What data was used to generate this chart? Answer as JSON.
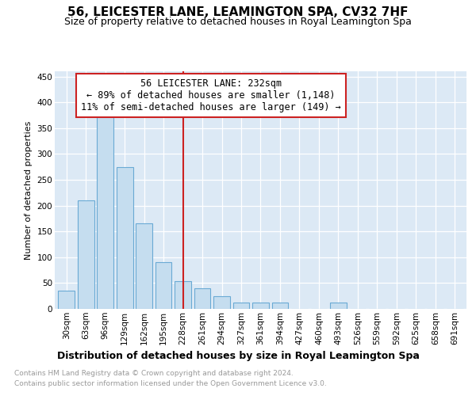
{
  "title": "56, LEICESTER LANE, LEAMINGTON SPA, CV32 7HF",
  "subtitle": "Size of property relative to detached houses in Royal Leamington Spa",
  "xlabel": "Distribution of detached houses by size in Royal Leamington Spa",
  "ylabel": "Number of detached properties",
  "footnote1": "Contains HM Land Registry data © Crown copyright and database right 2024.",
  "footnote2": "Contains public sector information licensed under the Open Government Licence v3.0.",
  "annotation_line1": "56 LEICESTER LANE: 232sqm",
  "annotation_line2": "← 89% of detached houses are smaller (1,148)",
  "annotation_line3": "11% of semi-detached houses are larger (149) →",
  "bar_color": "#c5ddef",
  "bar_edge_color": "#6aaad4",
  "highlight_line_color": "#cc2222",
  "annotation_box_edgecolor": "#cc2222",
  "plot_bg_color": "#dce9f5",
  "categories": [
    "30sqm",
    "63sqm",
    "96sqm",
    "129sqm",
    "162sqm",
    "195sqm",
    "228sqm",
    "261sqm",
    "294sqm",
    "327sqm",
    "361sqm",
    "394sqm",
    "427sqm",
    "460sqm",
    "493sqm",
    "526sqm",
    "559sqm",
    "592sqm",
    "625sqm",
    "658sqm",
    "691sqm"
  ],
  "values": [
    35,
    210,
    375,
    275,
    165,
    90,
    53,
    40,
    24,
    13,
    12,
    12,
    0,
    0,
    12,
    0,
    0,
    0,
    0,
    0,
    0
  ],
  "ylim": [
    0,
    460
  ],
  "yticks": [
    0,
    50,
    100,
    150,
    200,
    250,
    300,
    350,
    400,
    450
  ],
  "property_bin_index": 6,
  "title_fontsize": 11,
  "subtitle_fontsize": 9,
  "ylabel_fontsize": 8,
  "xlabel_fontsize": 9,
  "tick_fontsize": 7.5,
  "footnote_fontsize": 6.5,
  "annotation_fontsize": 8.5
}
